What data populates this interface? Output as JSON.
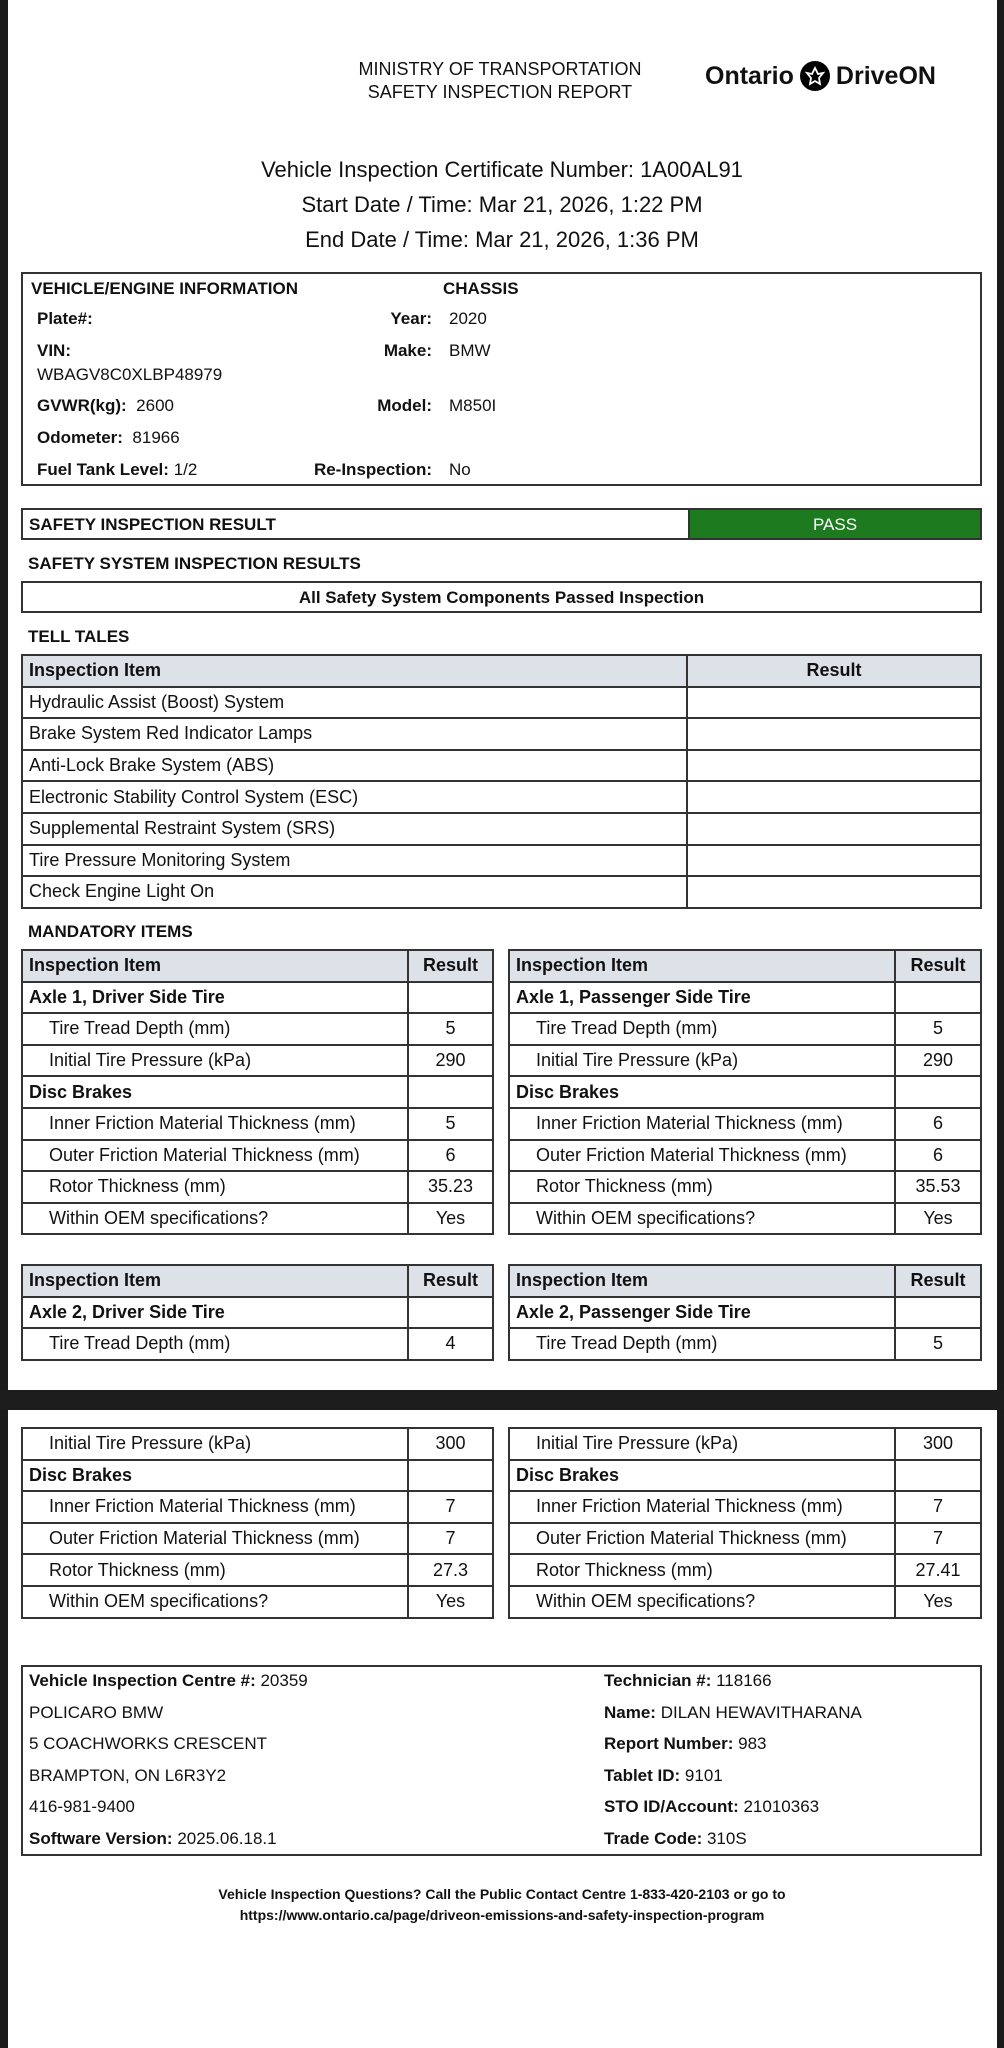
{
  "header": {
    "ministry": "MINISTRY OF TRANSPORTATION",
    "report_title": "SAFETY INSPECTION REPORT",
    "logo_left": "Ontario",
    "logo_right": "DriveON"
  },
  "certificate": {
    "number_line": "Vehicle Inspection Certificate Number: 1A00AL91",
    "start_line": "Start Date / Time: Mar 21, 2026, 1:22 PM",
    "end_line": "End Date / Time: Mar 21, 2026, 1:36 PM"
  },
  "vehicle": {
    "section_title": "VEHICLE/ENGINE INFORMATION",
    "chassis_title": "CHASSIS",
    "plate_label": "Plate#:",
    "vin_label": "VIN:",
    "vin": "WBAGV8C0XLBP48979",
    "gvwr_label": "GVWR(kg):",
    "gvwr": "2600",
    "odometer_label": "Odometer:",
    "odometer": "81966",
    "fuel_label": "Fuel Tank Level:",
    "fuel": "1/2",
    "year_label": "Year:",
    "year": "2020",
    "make_label": "Make:",
    "make": "BMW",
    "model_label": "Model:",
    "model": "M850I",
    "reinspection_label": "Re-Inspection:",
    "reinspection": "No"
  },
  "result": {
    "label": "SAFETY INSPECTION RESULT",
    "value": "PASS",
    "pass_color": "#1e7a1e"
  },
  "safety_system": {
    "title": "SAFETY SYSTEM INSPECTION RESULTS",
    "summary": "All Safety System Components Passed Inspection"
  },
  "tell_tales": {
    "title": "TELL TALES",
    "headers": [
      "Inspection Item",
      "Result"
    ],
    "items": [
      "Hydraulic Assist (Boost) System",
      "Brake System Red Indicator Lamps",
      "Anti-Lock Brake System (ABS)",
      "Electronic Stability Control System (ESC)",
      "Supplemental Restraint System (SRS)",
      "Tire Pressure Monitoring System",
      "Check Engine Light On"
    ]
  },
  "mandatory": {
    "title": "MANDATORY ITEMS",
    "headers": [
      "Inspection Item",
      "Result"
    ],
    "tables": [
      {
        "rows": [
          {
            "t": "head",
            "label": "Inspection Item",
            "value": "Result"
          },
          {
            "t": "group",
            "label": "Axle 1, Driver Side Tire",
            "value": ""
          },
          {
            "t": "item",
            "label": "Tire Tread Depth (mm)",
            "value": "5"
          },
          {
            "t": "item",
            "label": "Initial Tire Pressure (kPa)",
            "value": "290"
          },
          {
            "t": "group",
            "label": "Disc Brakes",
            "value": ""
          },
          {
            "t": "item",
            "label": "Inner Friction Material Thickness (mm)",
            "value": "5"
          },
          {
            "t": "item",
            "label": "Outer Friction Material Thickness (mm)",
            "value": "6"
          },
          {
            "t": "item",
            "label": "Rotor Thickness (mm)",
            "value": "35.23"
          },
          {
            "t": "item",
            "label": "Within OEM specifications?",
            "value": "Yes"
          }
        ]
      },
      {
        "rows": [
          {
            "t": "head",
            "label": "Inspection Item",
            "value": "Result"
          },
          {
            "t": "group",
            "label": "Axle 1, Passenger Side Tire",
            "value": ""
          },
          {
            "t": "item",
            "label": "Tire Tread Depth (mm)",
            "value": "5"
          },
          {
            "t": "item",
            "label": "Initial Tire Pressure (kPa)",
            "value": "290"
          },
          {
            "t": "group",
            "label": "Disc Brakes",
            "value": ""
          },
          {
            "t": "item",
            "label": "Inner Friction Material Thickness (mm)",
            "value": "6"
          },
          {
            "t": "item",
            "label": "Outer Friction Material Thickness (mm)",
            "value": "6"
          },
          {
            "t": "item",
            "label": "Rotor Thickness (mm)",
            "value": "35.53"
          },
          {
            "t": "item",
            "label": "Within OEM specifications?",
            "value": "Yes"
          }
        ]
      },
      {
        "rows": [
          {
            "t": "head",
            "label": "Inspection Item",
            "value": "Result"
          },
          {
            "t": "group",
            "label": "Axle 2, Driver Side Tire",
            "value": ""
          },
          {
            "t": "item",
            "label": "Tire Tread Depth (mm)",
            "value": "4"
          }
        ]
      },
      {
        "rows": [
          {
            "t": "head",
            "label": "Inspection Item",
            "value": "Result"
          },
          {
            "t": "group",
            "label": "Axle 2, Passenger Side Tire",
            "value": ""
          },
          {
            "t": "item",
            "label": "Tire Tread Depth (mm)",
            "value": "5"
          }
        ]
      },
      {
        "rows": [
          {
            "t": "item",
            "label": "Initial Tire Pressure (kPa)",
            "value": "300"
          },
          {
            "t": "group",
            "label": "Disc Brakes",
            "value": ""
          },
          {
            "t": "item",
            "label": "Inner Friction Material Thickness (mm)",
            "value": "7"
          },
          {
            "t": "item",
            "label": "Outer Friction Material Thickness (mm)",
            "value": "7"
          },
          {
            "t": "item",
            "label": "Rotor Thickness (mm)",
            "value": "27.3"
          },
          {
            "t": "item",
            "label": "Within OEM specifications?",
            "value": "Yes"
          }
        ]
      },
      {
        "rows": [
          {
            "t": "item",
            "label": "Initial Tire Pressure (kPa)",
            "value": "300"
          },
          {
            "t": "group",
            "label": "Disc Brakes",
            "value": ""
          },
          {
            "t": "item",
            "label": "Inner Friction Material Thickness (mm)",
            "value": "7"
          },
          {
            "t": "item",
            "label": "Outer Friction Material Thickness (mm)",
            "value": "7"
          },
          {
            "t": "item",
            "label": "Rotor Thickness (mm)",
            "value": "27.41"
          },
          {
            "t": "item",
            "label": "Within OEM specifications?",
            "value": "Yes"
          }
        ]
      }
    ]
  },
  "centre": {
    "left": [
      {
        "label": "Vehicle Inspection Centre #:",
        "value": " 20359"
      },
      {
        "label": "",
        "value": "POLICARO BMW"
      },
      {
        "label": "",
        "value": "5 COACHWORKS CRESCENT"
      },
      {
        "label": "",
        "value": "BRAMPTON, ON L6R3Y2"
      },
      {
        "label": "",
        "value": "416-981-9400"
      },
      {
        "label": "Software Version:",
        "value": " 2025.06.18.1"
      }
    ],
    "right": [
      {
        "label": "Technician #:",
        "value": " 118166"
      },
      {
        "label": "Name:",
        "value": " DILAN HEWAVITHARANA"
      },
      {
        "label": "Report Number:",
        "value": " 983"
      },
      {
        "label": "Tablet ID:",
        "value": " 9101"
      },
      {
        "label": "STO ID/Account:",
        "value": " 21010363"
      },
      {
        "label": "Trade Code:",
        "value": " 310S"
      }
    ]
  },
  "footer": {
    "line1": "Vehicle Inspection Questions? Call the Public Contact Centre 1-833-420-2103 or go to",
    "line2": "https://www.ontario.ca/page/driveon-emissions-and-safety-inspection-program"
  }
}
